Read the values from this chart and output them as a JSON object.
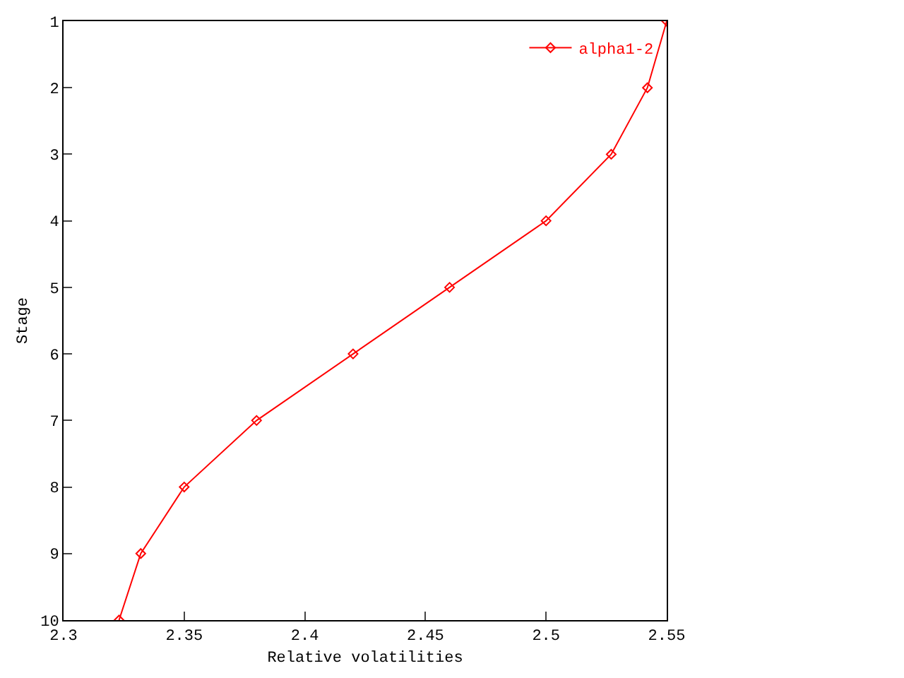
{
  "chart_data": {
    "type": "line",
    "xlabel": "Relative volatilities",
    "ylabel": "Stage",
    "series": [
      {
        "name": "alpha1-2",
        "color": "#ff0000",
        "x": [
          2.55,
          2.542,
          2.527,
          2.5,
          2.46,
          2.42,
          2.38,
          2.35,
          2.332,
          2.323
        ],
        "values": [
          1,
          2,
          3,
          4,
          5,
          6,
          7,
          8,
          9,
          10
        ]
      }
    ],
    "xlim": [
      2.3,
      2.55
    ],
    "xticks": [
      2.3,
      2.35,
      2.4,
      2.45,
      2.5,
      2.55
    ],
    "ylim": [
      10,
      1
    ],
    "yticks": [
      1,
      2,
      3,
      4,
      5,
      6,
      7,
      8,
      9,
      10
    ],
    "legend": "top right",
    "marker": "diamond",
    "line_style": "solid"
  }
}
